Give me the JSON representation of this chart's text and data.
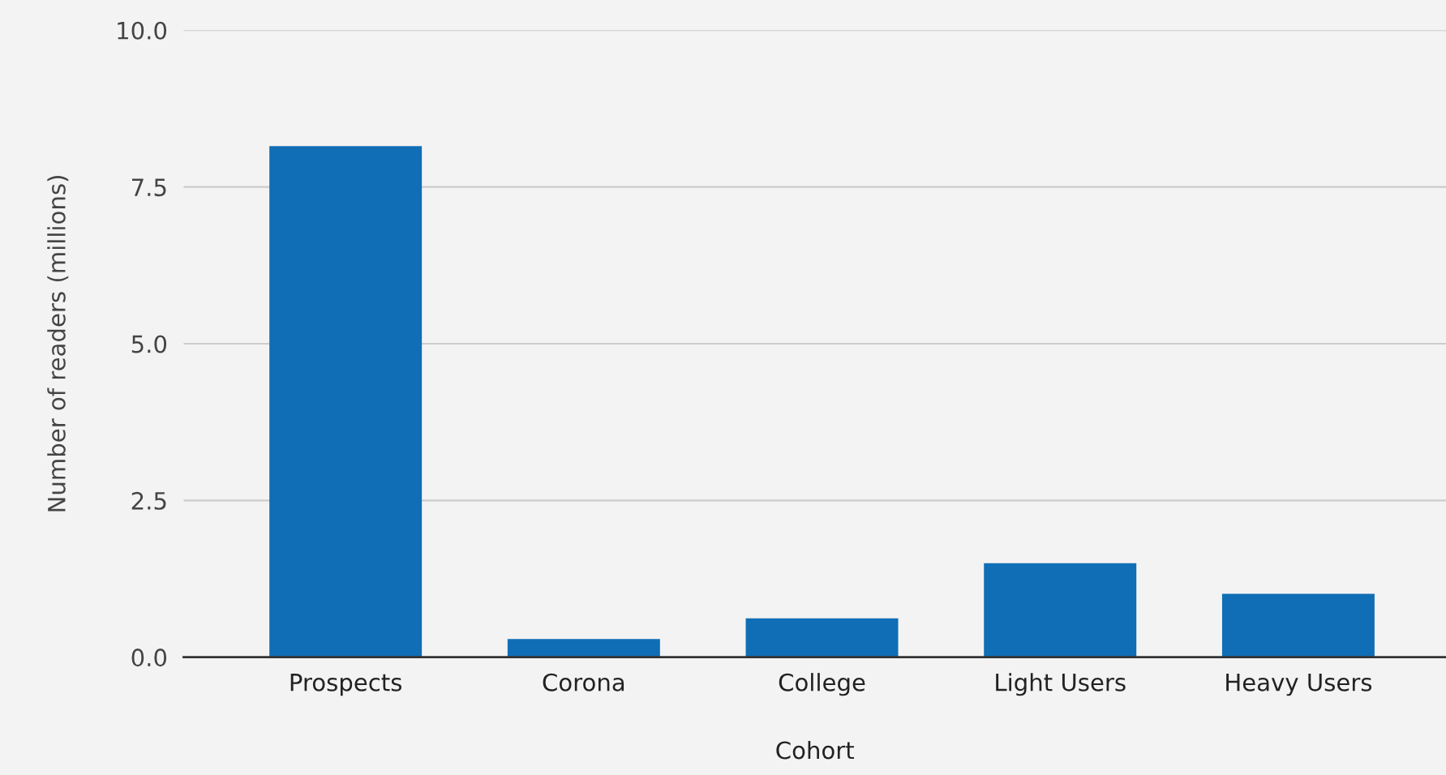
{
  "chart_data": {
    "type": "bar",
    "xlabel": "Cohort",
    "ylabel": "Number of readers (millions)",
    "categories": [
      "Prospects",
      "Corona",
      "College",
      "Light Users",
      "Heavy Users"
    ],
    "values": [
      8.15,
      0.29,
      0.62,
      1.5,
      1.01
    ],
    "color": "#0f6eb5",
    "ylim": [
      0,
      10
    ],
    "yticks": [
      {
        "value": 0,
        "label": "0.0"
      },
      {
        "value": 2.5,
        "label": "2.5"
      },
      {
        "value": 5,
        "label": "5.0"
      },
      {
        "value": 7.5,
        "label": "7.5"
      },
      {
        "value": 10,
        "label": "10.0"
      }
    ],
    "grid": "y"
  }
}
